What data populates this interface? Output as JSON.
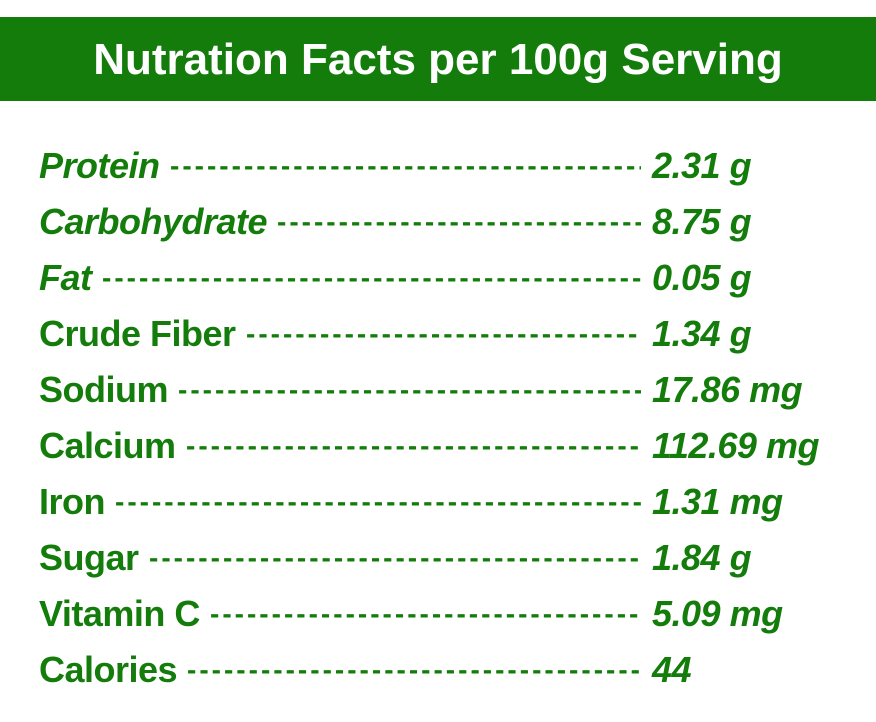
{
  "header": {
    "title": "Nutration Facts per 100g Serving"
  },
  "colors": {
    "brand_green": "#137c0b",
    "background": "#ffffff",
    "header_text": "#ffffff"
  },
  "rows": [
    {
      "label": "Protein",
      "value": "2.31 g",
      "italic_label": true
    },
    {
      "label": "Carbohydrate",
      "value": "8.75 g",
      "italic_label": true
    },
    {
      "label": "Fat",
      "value": "0.05 g",
      "italic_label": true
    },
    {
      "label": "Crude Fiber",
      "value": "1.34 g",
      "italic_label": false
    },
    {
      "label": "Sodium",
      "value": "17.86 mg",
      "italic_label": false
    },
    {
      "label": "Calcium",
      "value": "112.69 mg",
      "italic_label": false
    },
    {
      "label": "Iron",
      "value": "1.31 mg",
      "italic_label": false
    },
    {
      "label": "Sugar",
      "value": "1.84 g",
      "italic_label": false
    },
    {
      "label": "Vitamin C",
      "value": "5.09 mg",
      "italic_label": false
    },
    {
      "label": "Calories",
      "value": "44",
      "italic_label": false
    }
  ]
}
